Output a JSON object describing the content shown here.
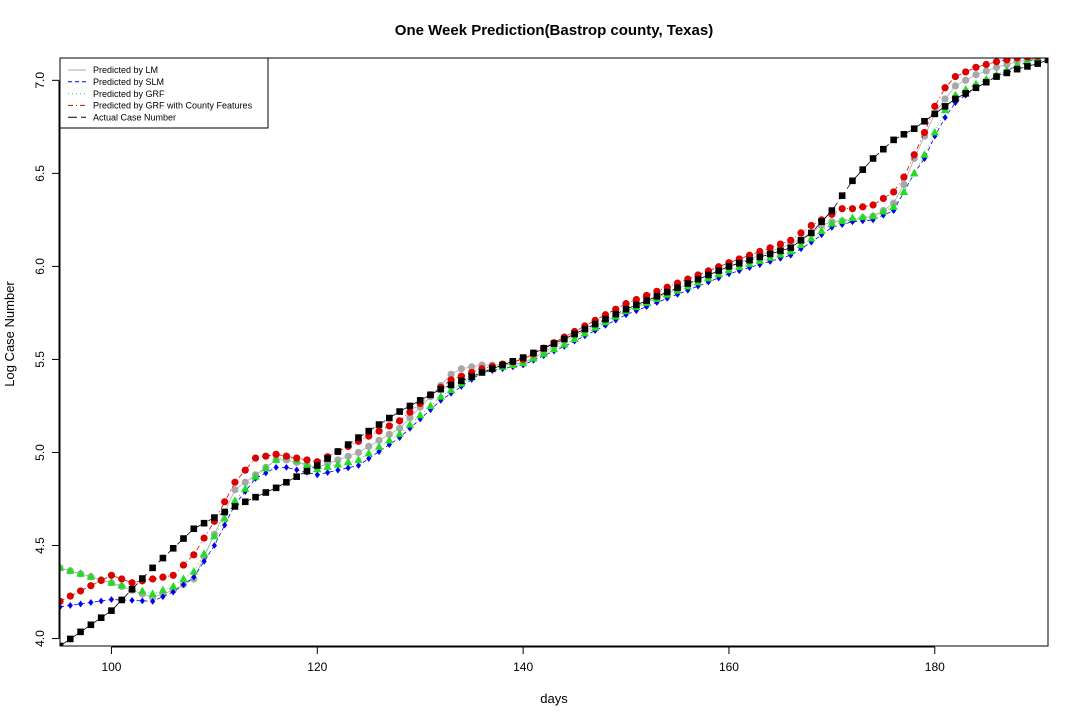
{
  "chart_data": {
    "type": "line",
    "title": "One Week Prediction(Bastrop county, Texas)",
    "xlabel": "days",
    "ylabel": "Log Case Number",
    "xlim": [
      95,
      191
    ],
    "ylim": [
      3.96,
      7.12
    ],
    "x_ticks": [
      100,
      120,
      140,
      160,
      180
    ],
    "y_ticks": [
      4.0,
      4.5,
      5.0,
      5.5,
      6.0,
      6.5,
      7.0
    ],
    "x_tick_labels": [
      "100",
      "120",
      "140",
      "160",
      "180"
    ],
    "y_tick_labels": [
      "4.0",
      "4.5",
      "5.0",
      "5.5",
      "6.0",
      "6.5",
      "7.0"
    ],
    "grid": false,
    "legend_position": "top-left",
    "series": [
      {
        "name": "Predicted by LM",
        "color": "#a8a8a8",
        "line_style": "solid",
        "marker": "circle",
        "x": [
          95,
          100,
          104,
          106,
          108,
          112,
          116,
          117,
          120,
          124,
          128,
          131,
          133,
          134,
          136,
          138,
          140,
          144,
          150,
          160,
          166,
          168,
          169,
          170,
          172,
          174,
          175,
          176,
          177,
          178,
          179,
          180,
          181,
          182,
          184,
          186,
          188,
          190
        ],
        "y": [
          4.38,
          4.3,
          4.22,
          4.26,
          4.32,
          4.8,
          4.96,
          4.96,
          4.92,
          5.0,
          5.13,
          5.3,
          5.42,
          5.45,
          5.47,
          5.47,
          5.48,
          5.6,
          5.76,
          6.0,
          6.12,
          6.18,
          6.22,
          6.24,
          6.25,
          6.27,
          6.3,
          6.34,
          6.44,
          6.58,
          6.7,
          6.82,
          6.9,
          6.97,
          7.03,
          7.07,
          7.1,
          7.12
        ]
      },
      {
        "name": "Predicted by SLM",
        "color": "#0000ee",
        "line_style": "dashed",
        "marker": "diamond",
        "x": [
          95,
          100,
          104,
          106,
          108,
          110,
          112,
          114,
          116,
          117,
          120,
          124,
          128,
          132,
          136,
          140,
          144,
          150,
          160,
          166,
          168,
          170,
          172,
          174,
          176,
          177,
          178,
          179,
          180,
          181,
          182,
          184,
          186,
          188,
          190
        ],
        "y": [
          4.17,
          4.21,
          4.2,
          4.25,
          4.33,
          4.5,
          4.72,
          4.86,
          4.92,
          4.92,
          4.88,
          4.93,
          5.08,
          5.28,
          5.43,
          5.47,
          5.57,
          5.74,
          5.96,
          6.06,
          6.13,
          6.21,
          6.24,
          6.25,
          6.3,
          6.4,
          6.5,
          6.58,
          6.7,
          6.8,
          6.88,
          6.96,
          7.02,
          7.08,
          7.12
        ]
      },
      {
        "name": "Predicted by GRF",
        "color": "#22dd22",
        "line_style": "dotted",
        "marker": "triangle",
        "x": [
          95,
          100,
          104,
          106,
          108,
          110,
          112,
          114,
          116,
          117,
          120,
          124,
          128,
          132,
          136,
          140,
          144,
          150,
          160,
          166,
          168,
          170,
          172,
          174,
          176,
          177,
          178,
          179,
          180,
          181,
          182,
          184,
          186,
          188,
          190
        ],
        "y": [
          4.38,
          4.3,
          4.24,
          4.28,
          4.36,
          4.55,
          4.74,
          4.87,
          4.96,
          4.98,
          4.91,
          4.96,
          5.1,
          5.3,
          5.44,
          5.48,
          5.58,
          5.76,
          5.98,
          6.08,
          6.15,
          6.23,
          6.26,
          6.27,
          6.32,
          6.4,
          6.5,
          6.6,
          6.72,
          6.84,
          6.92,
          6.98,
          7.03,
          7.08,
          7.12
        ]
      },
      {
        "name": "Predicted by GRF with County Features",
        "color": "#dd0000",
        "line_style": "dashdot",
        "marker": "circle",
        "x": [
          95,
          100,
          102,
          104,
          106,
          108,
          110,
          112,
          114,
          116,
          117,
          120,
          124,
          128,
          131,
          133,
          136,
          140,
          144,
          150,
          160,
          166,
          168,
          170,
          171,
          172,
          174,
          176,
          177,
          178,
          179,
          180,
          181,
          182,
          184,
          186,
          188,
          190
        ],
        "y": [
          4.2,
          4.34,
          4.3,
          4.32,
          4.34,
          4.45,
          4.63,
          4.84,
          4.97,
          4.99,
          4.98,
          4.95,
          5.06,
          5.17,
          5.31,
          5.39,
          5.45,
          5.5,
          5.62,
          5.8,
          6.02,
          6.14,
          6.22,
          6.28,
          6.31,
          6.31,
          6.33,
          6.4,
          6.48,
          6.6,
          6.72,
          6.86,
          6.96,
          7.02,
          7.07,
          7.1,
          7.12,
          7.13
        ]
      },
      {
        "name": "Actual Case Number",
        "color": "#000000",
        "line_style": "longdash",
        "marker": "square",
        "x": [
          95,
          100,
          104,
          108,
          112,
          116,
          120,
          124,
          128,
          132,
          136,
          140,
          144,
          150,
          160,
          166,
          168,
          170,
          172,
          174,
          176,
          178,
          180,
          182,
          184,
          186,
          188,
          190,
          191
        ],
        "y": [
          3.96,
          4.15,
          4.38,
          4.59,
          4.71,
          4.81,
          4.93,
          5.08,
          5.22,
          5.34,
          5.43,
          5.51,
          5.61,
          5.77,
          6.0,
          6.1,
          6.18,
          6.3,
          6.46,
          6.58,
          6.68,
          6.74,
          6.82,
          6.9,
          6.96,
          7.02,
          7.06,
          7.09,
          7.11
        ]
      }
    ]
  }
}
